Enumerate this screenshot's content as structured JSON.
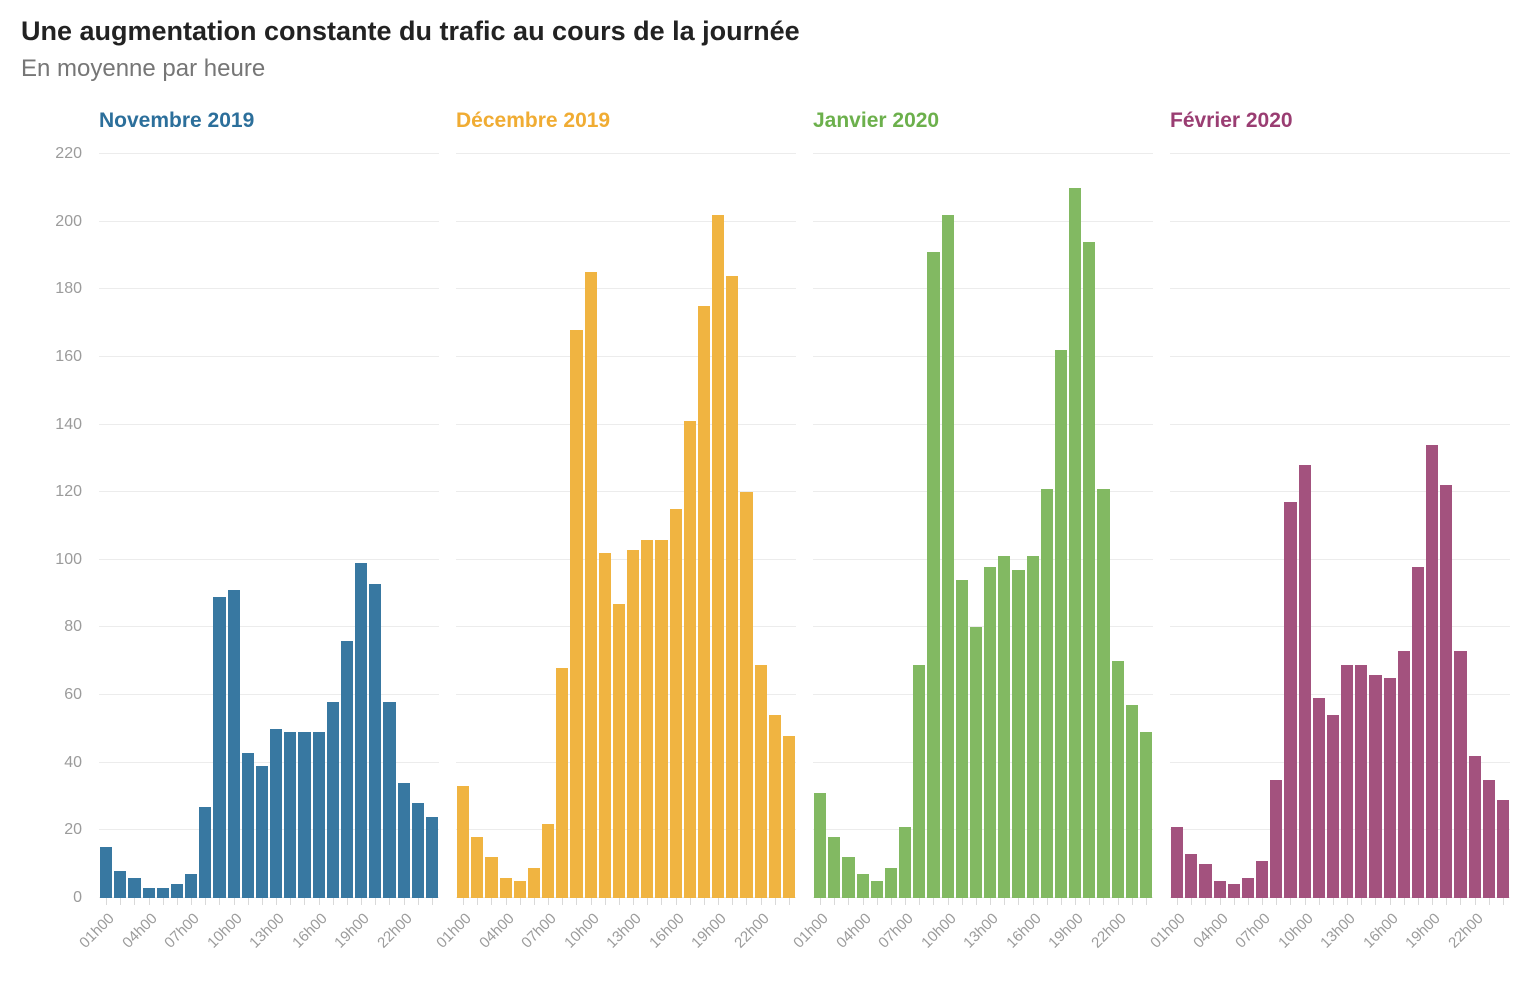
{
  "header": {
    "title": "Une augmentation constante du trafic au cours de la journée",
    "subtitle": "En moyenne par heure"
  },
  "chart_data": {
    "type": "bar",
    "title": "Une augmentation constante du trafic au cours de la journée",
    "subtitle": "En moyenne par heure",
    "x_hours": [
      "01h00",
      "02h00",
      "03h00",
      "04h00",
      "05h00",
      "06h00",
      "07h00",
      "08h00",
      "09h00",
      "10h00",
      "11h00",
      "12h00",
      "13h00",
      "14h00",
      "15h00",
      "16h00",
      "17h00",
      "18h00",
      "19h00",
      "20h00",
      "21h00",
      "22h00",
      "23h00",
      "24h00"
    ],
    "x_tick_labels": [
      "01h00",
      "04h00",
      "07h00",
      "10h00",
      "13h00",
      "16h00",
      "19h00",
      "22h00"
    ],
    "x_labeled_hour_indexes": [
      0,
      3,
      6,
      9,
      12,
      15,
      18,
      21
    ],
    "y_ticks": [
      0,
      20,
      40,
      60,
      80,
      100,
      120,
      140,
      160,
      180,
      200,
      220
    ],
    "ylim": [
      0,
      220
    ],
    "grid": "horizontal",
    "legend_position": "panel-titles",
    "panels": [
      {
        "label": "Novembre 2019",
        "title_color": "#2c6f9b",
        "bar_color": "#3878a1",
        "values": [
          15,
          8,
          6,
          3,
          3,
          4,
          7,
          27,
          89,
          91,
          43,
          39,
          50,
          49,
          49,
          49,
          58,
          76,
          99,
          93,
          58,
          34,
          28,
          24
        ]
      },
      {
        "label": "Décembre 2019",
        "title_color": "#f0ac33",
        "bar_color": "#f0b441",
        "values": [
          33,
          18,
          12,
          6,
          5,
          9,
          22,
          68,
          168,
          185,
          102,
          87,
          103,
          106,
          106,
          115,
          141,
          175,
          202,
          184,
          120,
          69,
          54,
          48
        ]
      },
      {
        "label": "Janvier 2020",
        "title_color": "#6cb04c",
        "bar_color": "#82b962",
        "values": [
          31,
          18,
          12,
          7,
          5,
          9,
          21,
          69,
          191,
          202,
          94,
          80,
          98,
          101,
          97,
          101,
          121,
          162,
          210,
          194,
          121,
          70,
          57,
          49
        ]
      },
      {
        "label": "Février 2020",
        "title_color": "#9a3d72",
        "bar_color": "#a3527e",
        "values": [
          21,
          13,
          10,
          5,
          4,
          6,
          11,
          35,
          117,
          128,
          59,
          54,
          69,
          69,
          66,
          65,
          73,
          98,
          134,
          122,
          73,
          42,
          35,
          29
        ]
      }
    ],
    "layout": {
      "gridline_color": "#ececec",
      "axis_text_color": "#9b9b9b",
      "tick_color": "#d9d9d9"
    }
  }
}
